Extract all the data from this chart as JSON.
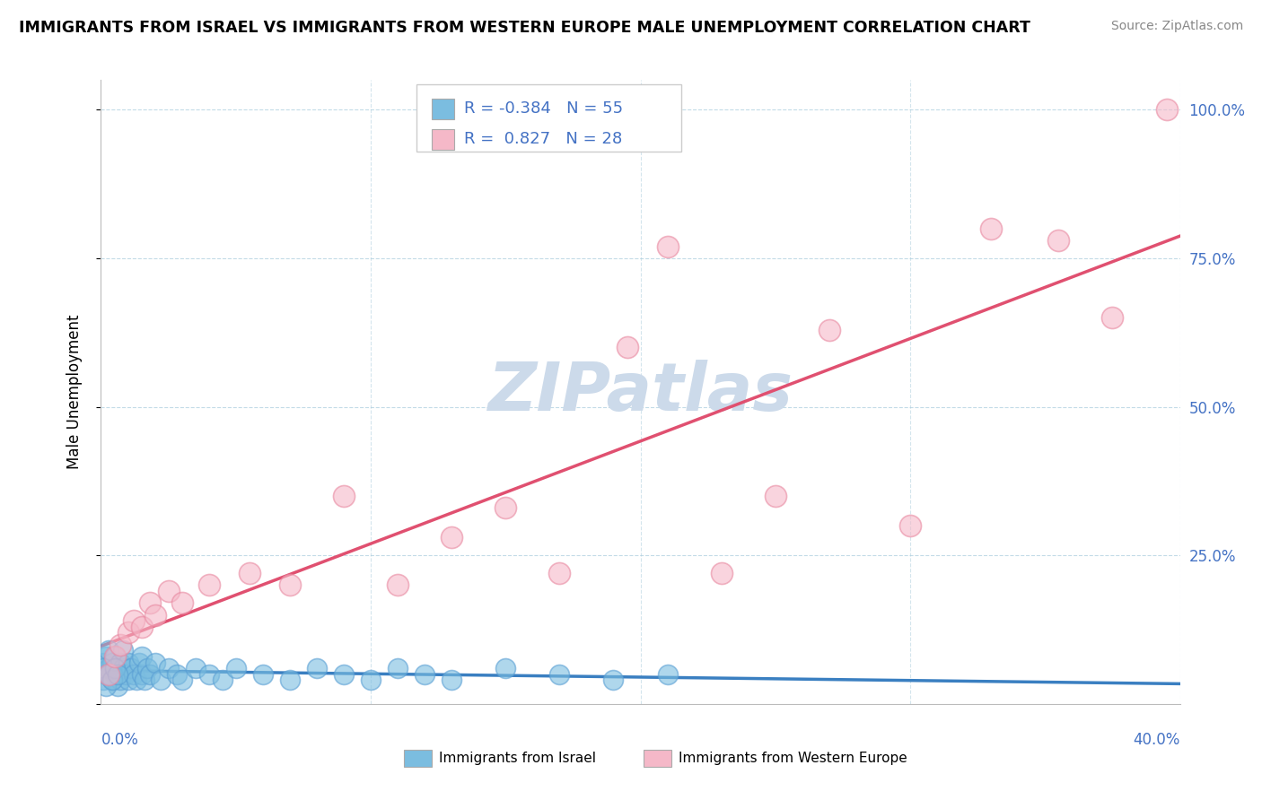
{
  "title": "IMMIGRANTS FROM ISRAEL VS IMMIGRANTS FROM WESTERN EUROPE MALE UNEMPLOYMENT CORRELATION CHART",
  "source": "Source: ZipAtlas.com",
  "ylabel": "Male Unemployment",
  "xlim": [
    0.0,
    0.4
  ],
  "ylim": [
    0.0,
    1.05
  ],
  "series1_color": "#7bbde0",
  "series2_color": "#f5b8c8",
  "series1_edge": "#5a9fd4",
  "series2_edge": "#e888a0",
  "trendline1_color": "#3a7fc1",
  "trendline2_color": "#e05070",
  "watermark_color": "#ccdaea",
  "r1": "-0.384",
  "n1": "55",
  "r2": "0.827",
  "n2": "28",
  "label1": "Immigrants from Israel",
  "label2": "Immigrants from Western Europe",
  "israel_x": [
    0.001,
    0.001,
    0.002,
    0.002,
    0.003,
    0.003,
    0.004,
    0.004,
    0.005,
    0.005,
    0.006,
    0.006,
    0.007,
    0.007,
    0.008,
    0.008,
    0.009,
    0.01,
    0.01,
    0.011,
    0.012,
    0.013,
    0.014,
    0.015,
    0.015,
    0.016,
    0.017,
    0.018,
    0.02,
    0.022,
    0.025,
    0.028,
    0.03,
    0.035,
    0.04,
    0.045,
    0.05,
    0.06,
    0.07,
    0.08,
    0.09,
    0.1,
    0.11,
    0.12,
    0.13,
    0.15,
    0.17,
    0.19,
    0.21,
    0.001,
    0.002,
    0.003,
    0.004,
    0.005,
    0.006
  ],
  "israel_y": [
    0.04,
    0.07,
    0.05,
    0.08,
    0.06,
    0.09,
    0.04,
    0.07,
    0.05,
    0.08,
    0.06,
    0.03,
    0.07,
    0.04,
    0.06,
    0.09,
    0.05,
    0.07,
    0.04,
    0.06,
    0.05,
    0.04,
    0.07,
    0.05,
    0.08,
    0.04,
    0.06,
    0.05,
    0.07,
    0.04,
    0.06,
    0.05,
    0.04,
    0.06,
    0.05,
    0.04,
    0.06,
    0.05,
    0.04,
    0.06,
    0.05,
    0.04,
    0.06,
    0.05,
    0.04,
    0.06,
    0.05,
    0.04,
    0.05,
    0.06,
    0.03,
    0.05,
    0.04,
    0.06,
    0.05
  ],
  "western_x": [
    0.003,
    0.005,
    0.007,
    0.01,
    0.012,
    0.015,
    0.018,
    0.02,
    0.025,
    0.03,
    0.04,
    0.055,
    0.07,
    0.09,
    0.11,
    0.13,
    0.15,
    0.17,
    0.195,
    0.21,
    0.23,
    0.25,
    0.27,
    0.3,
    0.33,
    0.355,
    0.375,
    0.395
  ],
  "western_y": [
    0.05,
    0.08,
    0.1,
    0.12,
    0.14,
    0.13,
    0.17,
    0.15,
    0.19,
    0.17,
    0.2,
    0.22,
    0.2,
    0.35,
    0.2,
    0.28,
    0.33,
    0.22,
    0.6,
    0.77,
    0.22,
    0.35,
    0.63,
    0.3,
    0.8,
    0.78,
    0.65,
    1.0
  ]
}
